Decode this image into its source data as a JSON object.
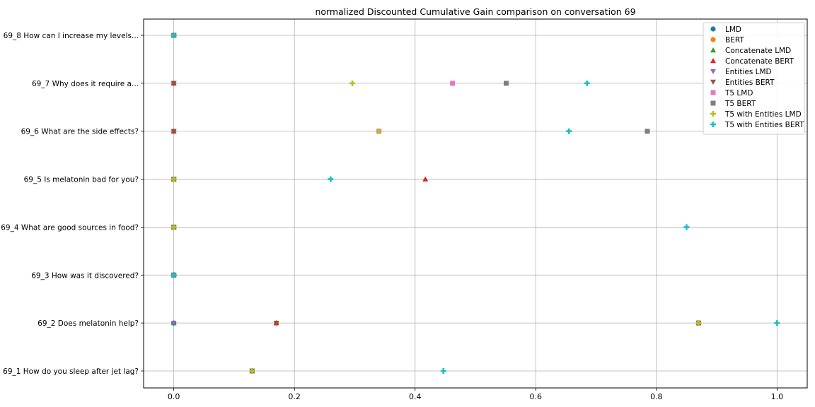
{
  "chart_data": {
    "type": "scatter",
    "title": "normalized Discounted Cumulative Gain comparison on conversation 69",
    "xlabel": "",
    "ylabel": "",
    "xlim": [
      -0.05,
      1.05
    ],
    "x_ticks": [
      0.0,
      0.2,
      0.4,
      0.6,
      0.8,
      1.0
    ],
    "x_tick_labels": [
      "0.0",
      "0.2",
      "0.4",
      "0.6",
      "0.8",
      "1.0"
    ],
    "grid": true,
    "legend_position": "top-right",
    "categories": [
      "69_1 How do you sleep after jet lag?",
      "69_2 Does melatonin help?",
      "69_3 How was it discovered?",
      "69_4 What are good sources in food?",
      "69_5 Is melatonin bad for you?",
      "69_6 What are the side effects?",
      "69_7 Why does it require a...",
      "69_8 How can I increase my levels..."
    ],
    "series": [
      {
        "name": "LMD",
        "marker": "circle",
        "color": "#1f77b4",
        "values": [
          0.13,
          0.0,
          0.0,
          0.0,
          0.0,
          0.0,
          0.0,
          0.0
        ]
      },
      {
        "name": "BERT",
        "marker": "circle",
        "color": "#ff7f0e",
        "values": [
          0.13,
          0.17,
          0.0,
          0.0,
          0.0,
          0.0,
          0.0,
          0.0
        ]
      },
      {
        "name": "Concatenate LMD",
        "marker": "triangle-up",
        "color": "#2ca02c",
        "values": [
          0.13,
          0.0,
          0.0,
          0.0,
          0.0,
          0.0,
          0.0,
          0.0
        ]
      },
      {
        "name": "Concatenate BERT",
        "marker": "triangle-up",
        "color": "#d62728",
        "values": [
          0.13,
          0.17,
          0.0,
          0.0,
          0.417,
          0.0,
          0.0,
          0.0
        ]
      },
      {
        "name": "Entities LMD",
        "marker": "triangle-down",
        "color": "#9467bd",
        "values": [
          0.13,
          0.0,
          0.0,
          0.0,
          0.0,
          0.0,
          0.0,
          0.0
        ]
      },
      {
        "name": "Entities BERT",
        "marker": "triangle-down",
        "color": "#8c564b",
        "values": [
          0.13,
          0.17,
          0.0,
          0.0,
          0.0,
          0.0,
          0.0,
          0.0
        ]
      },
      {
        "name": "T5 LMD",
        "marker": "square",
        "color": "#e377c2",
        "values": [
          0.13,
          0.87,
          0.0,
          0.0,
          0.0,
          0.34,
          0.462,
          0.0
        ]
      },
      {
        "name": "T5 BERT",
        "marker": "square",
        "color": "#7f7f7f",
        "values": [
          0.13,
          0.87,
          0.0,
          0.0,
          0.0,
          0.785,
          0.551,
          0.0
        ]
      },
      {
        "name": "T5 with Entities LMD",
        "marker": "plus",
        "color": "#bcbd22",
        "values": [
          0.13,
          0.87,
          0.0,
          0.0,
          0.0,
          0.34,
          0.296,
          0.0
        ]
      },
      {
        "name": "T5 with Entities BERT",
        "marker": "plus",
        "color": "#17becf",
        "values": [
          0.447,
          1.0,
          0.0,
          0.85,
          0.26,
          0.655,
          0.685,
          0.0
        ]
      }
    ]
  }
}
